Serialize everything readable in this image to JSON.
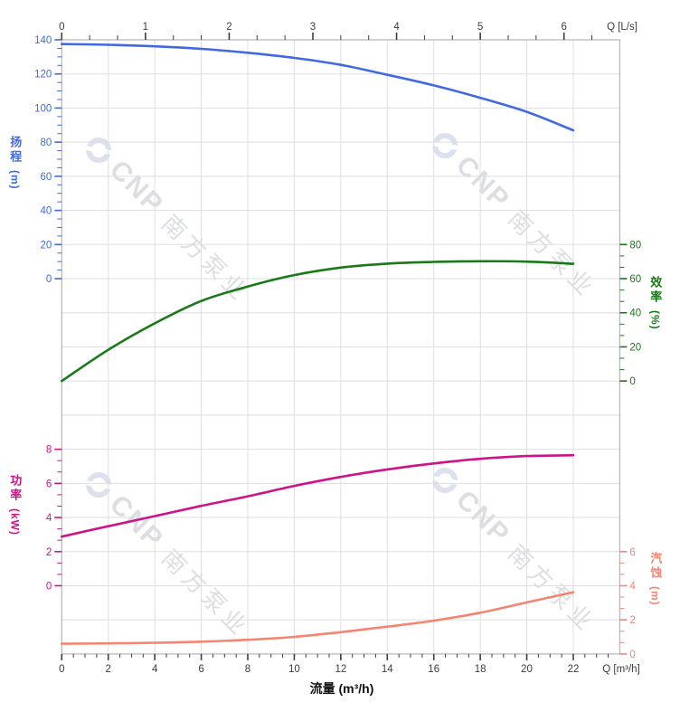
{
  "watermark": {
    "brand": "CNP",
    "cn": "南方泵业"
  },
  "chart_data": {
    "type": "line",
    "title": "",
    "x": [
      0,
      2,
      4,
      6,
      8,
      10,
      12,
      14,
      16,
      18,
      20,
      22
    ],
    "series": [
      {
        "name": "扬程",
        "unit": "(m)",
        "color": "#4169E1",
        "values": [
          137.5,
          137.1,
          136.2,
          134.7,
          132.4,
          129.4,
          125.3,
          119.5,
          113.3,
          106.0,
          97.8,
          86.9
        ],
        "axis": {
          "side": "left",
          "ticks": [
            0,
            20,
            40,
            60,
            80,
            100,
            120,
            140
          ],
          "minors_per_interval": 3,
          "vmin": 0,
          "vmax": 140,
          "row_top": 0,
          "row_bottom": 7
        }
      },
      {
        "name": "效率",
        "unit": "(%)",
        "color": "#177A17",
        "values": [
          0,
          18.3,
          33.8,
          46.9,
          55.4,
          62.1,
          66.5,
          68.8,
          69.8,
          70.2,
          70.0,
          68.7
        ],
        "axis": {
          "side": "right",
          "ticks": [
            0,
            20,
            40,
            60,
            80
          ],
          "minors_per_interval": 2,
          "vmin": 0,
          "vmax": 80,
          "row_top": 6,
          "row_bottom": 10
        }
      },
      {
        "name": "功率",
        "unit": "(kW)",
        "color": "#CC1488",
        "values": [
          2.88,
          3.49,
          4.08,
          4.68,
          5.24,
          5.85,
          6.38,
          6.82,
          7.17,
          7.44,
          7.6,
          7.65
        ],
        "axis": {
          "side": "left",
          "ticks": [
            0,
            2,
            4,
            6,
            8
          ],
          "minors_per_interval": 2,
          "vmin": 0,
          "vmax": 8,
          "row_top": 12,
          "row_bottom": 16
        }
      },
      {
        "name": "汽蚀",
        "unit": "(m)",
        "color": "#F58470",
        "values": [
          0.6,
          0.62,
          0.66,
          0.72,
          0.83,
          1.0,
          1.28,
          1.6,
          1.95,
          2.42,
          3.02,
          3.62
        ],
        "axis": {
          "side": "right",
          "ticks": [
            0,
            2,
            4,
            6
          ],
          "minors_per_interval": 2,
          "vmin": 0,
          "vmax": 6,
          "row_top": 15,
          "row_bottom": 18
        }
      }
    ],
    "top_axis": {
      "label": "Q [L/s]",
      "ticks": [
        0,
        1,
        2,
        3,
        4,
        5,
        6
      ],
      "minors_per_interval": 2,
      "m3h_per_unit": 3.6,
      "xmax_m3h": 24
    },
    "bottom_axis": {
      "label": "Q [m³/h]",
      "xlabel": "流量 (m³/h)",
      "ticks": [
        0,
        2,
        4,
        6,
        8,
        10,
        12,
        14,
        16,
        18,
        20,
        22
      ],
      "minors_per_interval": 3,
      "xmax": 24
    },
    "grid": true,
    "legend": "none",
    "colors": {
      "grid": "#dedede",
      "border": "#b5b5b5",
      "axis_text": "#3c3c3c"
    }
  }
}
